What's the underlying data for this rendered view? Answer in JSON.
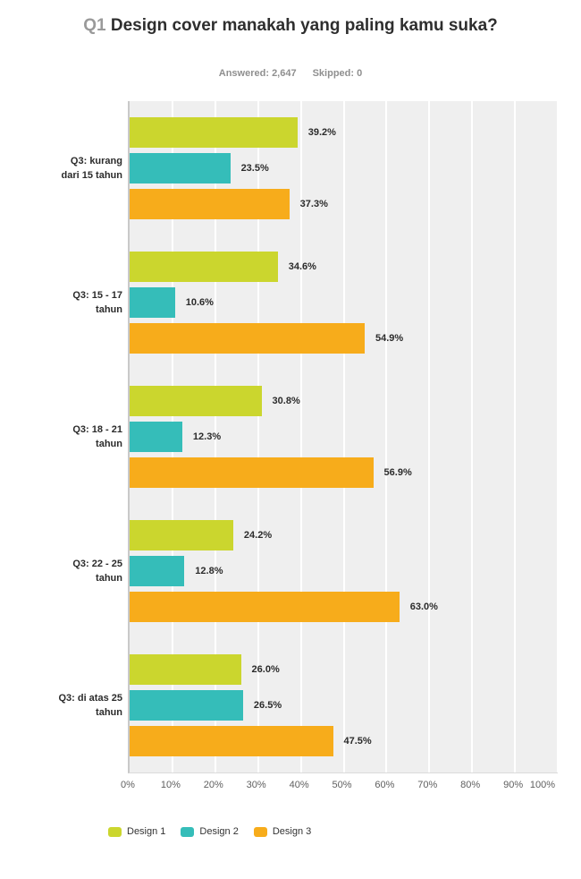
{
  "header": {
    "question_number": "Q1",
    "title": "Design cover manakah yang paling kamu suka?",
    "answered_label": "Answered:",
    "answered_value": "2,647",
    "skipped_label": "Skipped:",
    "skipped_value": "0"
  },
  "colors": {
    "title_dark": "#2e2e2e",
    "title_gray": "#9a9a9a",
    "plot_background": "#efefef",
    "gridline": "#ffffff",
    "axis_line": "#c9c9c9",
    "design1": "#cbd62e",
    "design2": "#35bdb9",
    "design3": "#f7ac1b"
  },
  "chart_data": {
    "type": "bar",
    "orientation": "horizontal",
    "title": "Q1 Design cover manakah yang paling kamu suka?",
    "subtitle": "Answered: 2,647  Skipped: 0",
    "xlabel": "",
    "ylabel": "",
    "xlim": [
      0,
      100
    ],
    "grid": true,
    "legend_position": "bottom",
    "x_ticks": [
      "0%",
      "10%",
      "20%",
      "30%",
      "40%",
      "50%",
      "60%",
      "70%",
      "80%",
      "90%",
      "100%"
    ],
    "categories": [
      "Q3: kurang dari 15 tahun",
      "Q3: 15 - 17 tahun",
      "Q3: 18 - 21 tahun",
      "Q3: 22 - 25 tahun",
      "Q3: di atas 25 tahun"
    ],
    "category_lines": [
      [
        "Q3: kurang",
        "dari 15 tahun"
      ],
      [
        "Q3: 15 - 17",
        "tahun"
      ],
      [
        "Q3: 18 - 21",
        "tahun"
      ],
      [
        "Q3: 22 - 25",
        "tahun"
      ],
      [
        "Q3: di atas 25",
        "tahun"
      ]
    ],
    "series": [
      {
        "name": "Design 1",
        "color": "#cbd62e",
        "values": [
          39.2,
          34.6,
          30.8,
          24.2,
          26.0
        ]
      },
      {
        "name": "Design 2",
        "color": "#35bdb9",
        "values": [
          23.5,
          10.6,
          12.3,
          12.8,
          26.5
        ]
      },
      {
        "name": "Design 3",
        "color": "#f7ac1b",
        "values": [
          37.3,
          54.9,
          56.9,
          63.0,
          47.5
        ]
      }
    ],
    "value_labels": [
      [
        "39.2%",
        "23.5%",
        "37.3%"
      ],
      [
        "34.6%",
        "10.6%",
        "54.9%"
      ],
      [
        "30.8%",
        "12.3%",
        "56.9%"
      ],
      [
        "24.2%",
        "12.8%",
        "63.0%"
      ],
      [
        "26.0%",
        "26.5%",
        "47.5%"
      ]
    ]
  }
}
